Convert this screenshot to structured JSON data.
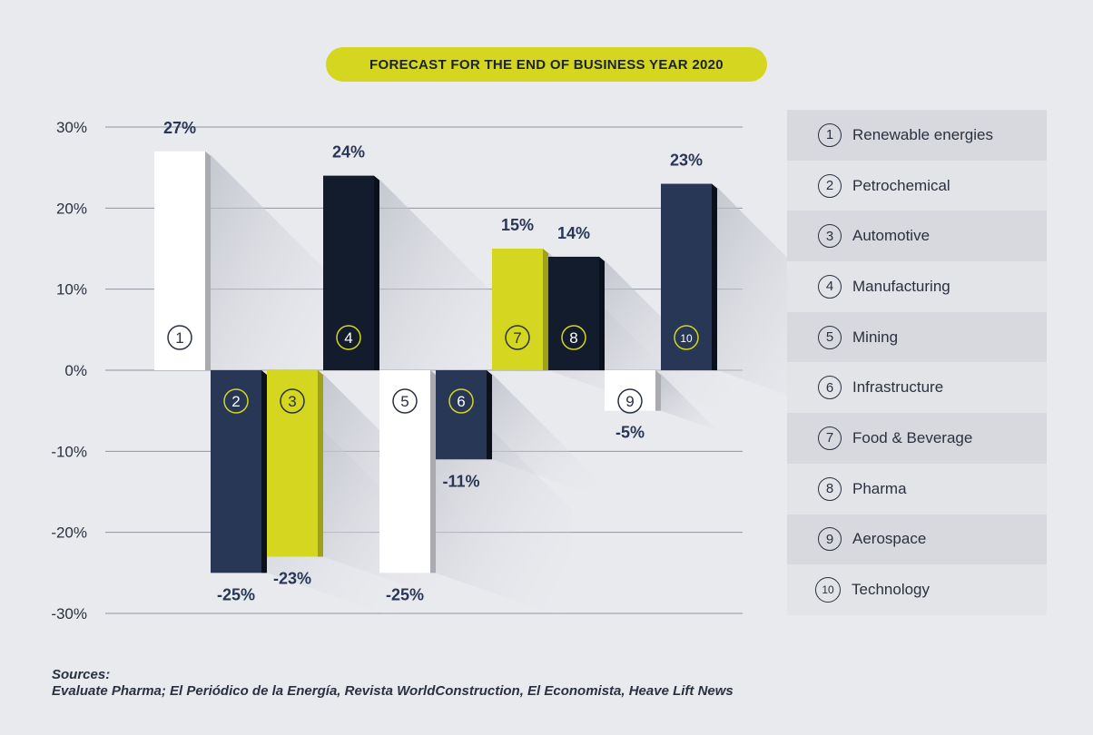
{
  "chart_data": {
    "type": "bar",
    "title": "FORECAST FOR THE END OF BUSINESS YEAR 2020",
    "categories": [
      "Renewable energies",
      "Petrochemical",
      "Automotive",
      "Manufacturing",
      "Mining",
      "Infrastructure",
      "Food & Beverage",
      "Pharma",
      "Aerospace",
      "Technology"
    ],
    "bar_numbers": [
      "1",
      "2",
      "3",
      "4",
      "5",
      "6",
      "7",
      "8",
      "9",
      "10"
    ],
    "values": [
      27,
      -25,
      -23,
      24,
      -25,
      -11,
      15,
      14,
      -5,
      23
    ],
    "value_labels": [
      "27%",
      "-25%",
      "-23%",
      "24%",
      "-25%",
      "-11%",
      "15%",
      "14%",
      "-5%",
      "23%"
    ],
    "ylim": [
      -30,
      30
    ],
    "yticks": [
      30,
      20,
      10,
      0,
      -10,
      -20,
      -30
    ],
    "ytick_labels": [
      "30%",
      "20%",
      "10%",
      "0%",
      "-10%",
      "-20%",
      "-30%"
    ],
    "grid": true,
    "legend_position": "right",
    "bar_colors": [
      "#ffffff",
      "#283755",
      "#d4d61f",
      "#131c2c",
      "#ffffff",
      "#283755",
      "#d4d61f",
      "#131c2c",
      "#ffffff",
      "#283755"
    ]
  },
  "legend_items": [
    {
      "num": "1",
      "label": "Renewable energies"
    },
    {
      "num": "2",
      "label": "Petrochemical"
    },
    {
      "num": "3",
      "label": "Automotive"
    },
    {
      "num": "4",
      "label": "Manufacturing"
    },
    {
      "num": "5",
      "label": "Mining"
    },
    {
      "num": "6",
      "label": "Infrastructure"
    },
    {
      "num": "7",
      "label": "Food & Beverage"
    },
    {
      "num": "8",
      "label": "Pharma"
    },
    {
      "num": "9",
      "label": "Aerospace"
    },
    {
      "num": "10",
      "label": "Technology"
    }
  ],
  "sources": {
    "heading": "Sources:",
    "text": "Evaluate Pharma; El Periódico de la Energía, Revista WorldConstruction, El Economista, Heave Lift News"
  }
}
